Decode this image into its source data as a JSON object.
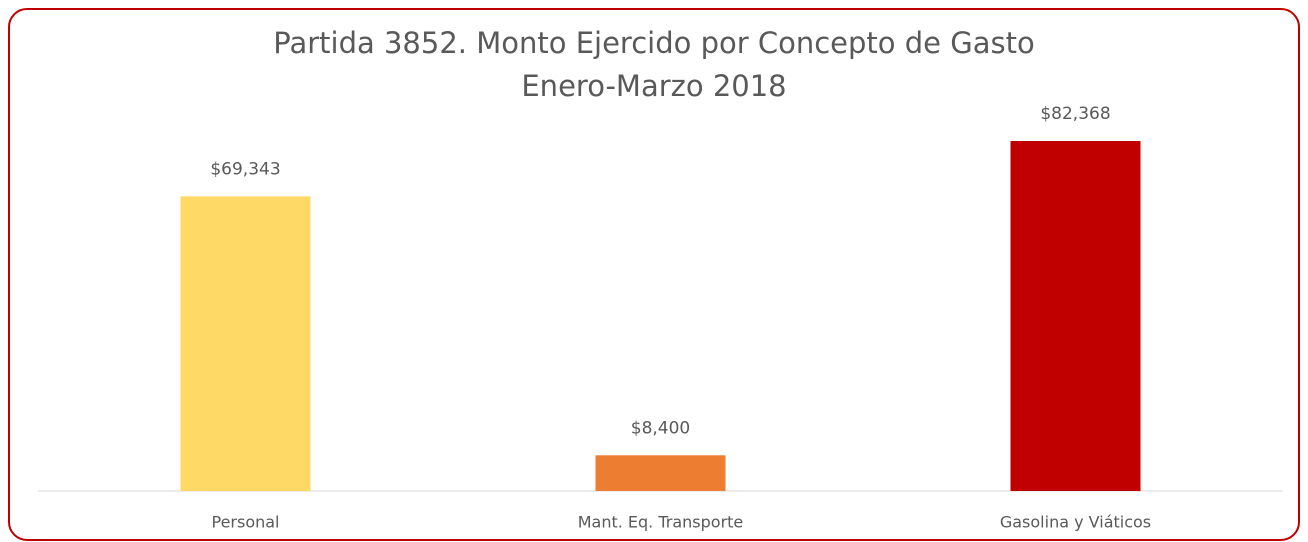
{
  "chart_data": {
    "type": "bar",
    "title": "Partida 3852. Monto Ejercido por Concepto de Gasto",
    "subtitle": "Enero-Marzo 2018",
    "categories": [
      "Personal",
      "Mant. Eq. Transporte",
      "Gasolina y Viáticos"
    ],
    "values": [
      69343,
      8400,
      82368
    ],
    "value_labels": [
      "$69,343",
      "$8,400",
      "$82,368"
    ],
    "colors": [
      "#ffd966",
      "#ed7d31",
      "#c00000"
    ]
  }
}
